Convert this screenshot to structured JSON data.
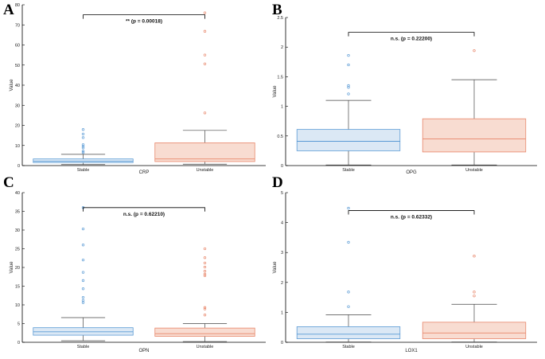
{
  "style": {
    "stable_fill": "#dbe8f5",
    "stable_stroke": "#5b9bd5",
    "unstable_fill": "#f8dcd1",
    "unstable_stroke": "#e8866a",
    "axis_color": "#000000",
    "sig_color": "#000000"
  },
  "chart_data": [
    {
      "panel": "A",
      "type": "box",
      "xlabel": "CRP",
      "ylabel": "Value",
      "ylim": [
        0,
        80
      ],
      "yticks": [
        0,
        10,
        20,
        30,
        40,
        50,
        60,
        70,
        80
      ],
      "categories": [
        "Stable",
        "Unstable"
      ],
      "series": [
        {
          "name": "Stable",
          "whisker_low": 0.5,
          "q1": 1.5,
          "median": 2.2,
          "q3": 3.3,
          "whisker_high": 5.6,
          "outliers": [
            6.5,
            7.2,
            8.8,
            9.6,
            10.4,
            13.9,
            15.7,
            17.9
          ]
        },
        {
          "name": "Unstable",
          "whisker_low": 0.7,
          "q1": 2.0,
          "median": 3.3,
          "q3": 11.3,
          "whisker_high": 17.5,
          "outliers": [
            26.2,
            50.6,
            55.0,
            66.8,
            76.0
          ]
        }
      ],
      "significance": "** (p = 0.00018)",
      "sig_y": 75
    },
    {
      "panel": "B",
      "type": "box",
      "xlabel": "OPG",
      "ylabel": "Value",
      "ylim": [
        0,
        2.5
      ],
      "yticks": [
        0,
        0.5,
        1,
        1.5,
        2,
        2.5
      ],
      "categories": [
        "Stable",
        "Unstable"
      ],
      "series": [
        {
          "name": "Stable",
          "whisker_low": 0.01,
          "q1": 0.25,
          "median": 0.41,
          "q3": 0.61,
          "whisker_high": 1.1,
          "outliers": [
            1.21,
            1.32,
            1.35,
            1.7,
            1.86
          ]
        },
        {
          "name": "Unstable",
          "whisker_low": 0.01,
          "q1": 0.23,
          "median": 0.45,
          "q3": 0.79,
          "whisker_high": 1.45,
          "outliers": [
            1.94
          ]
        }
      ],
      "significance": "n.s. (p = 0.22200)",
      "sig_y": 2.25
    },
    {
      "panel": "C",
      "type": "box",
      "xlabel": "OPN",
      "ylabel": "Value",
      "ylim": [
        0,
        40
      ],
      "yticks": [
        0,
        5,
        10,
        15,
        20,
        25,
        30,
        35,
        40
      ],
      "categories": [
        "Stable",
        "Unstable"
      ],
      "series": [
        {
          "name": "Stable",
          "whisker_low": 0.4,
          "q1": 1.9,
          "median": 2.8,
          "q3": 3.9,
          "whisker_high": 6.6,
          "outliers": [
            10.6,
            11.2,
            12.0,
            14.3,
            16.5,
            18.7,
            22.0,
            26.0,
            30.3,
            36.0
          ]
        },
        {
          "name": "Unstable",
          "whisker_low": 0.2,
          "q1": 1.6,
          "median": 2.3,
          "q3": 3.8,
          "whisker_high": 5.0,
          "outliers": [
            7.3,
            8.9,
            9.3,
            17.8,
            18.2,
            19.0,
            20.1,
            21.2,
            22.6,
            25.0
          ]
        }
      ],
      "significance": "n.s. (p = 0.62210)",
      "sig_y": 36
    },
    {
      "panel": "D",
      "type": "box",
      "xlabel": "LOX1",
      "ylabel": "Value",
      "ylim": [
        0,
        5
      ],
      "yticks": [
        0,
        1,
        2,
        3,
        4,
        5
      ],
      "categories": [
        "Stable",
        "Unstable"
      ],
      "series": [
        {
          "name": "Stable",
          "whisker_low": 0.01,
          "q1": 0.12,
          "median": 0.27,
          "q3": 0.52,
          "whisker_high": 0.92,
          "outliers": [
            1.19,
            1.68,
            3.34,
            4.48
          ]
        },
        {
          "name": "Unstable",
          "whisker_low": 0.01,
          "q1": 0.12,
          "median": 0.31,
          "q3": 0.67,
          "whisker_high": 1.27,
          "outliers": [
            1.55,
            1.68,
            2.88
          ]
        }
      ],
      "significance": "n.s. (p = 0.62332)",
      "sig_y": 4.4
    }
  ]
}
